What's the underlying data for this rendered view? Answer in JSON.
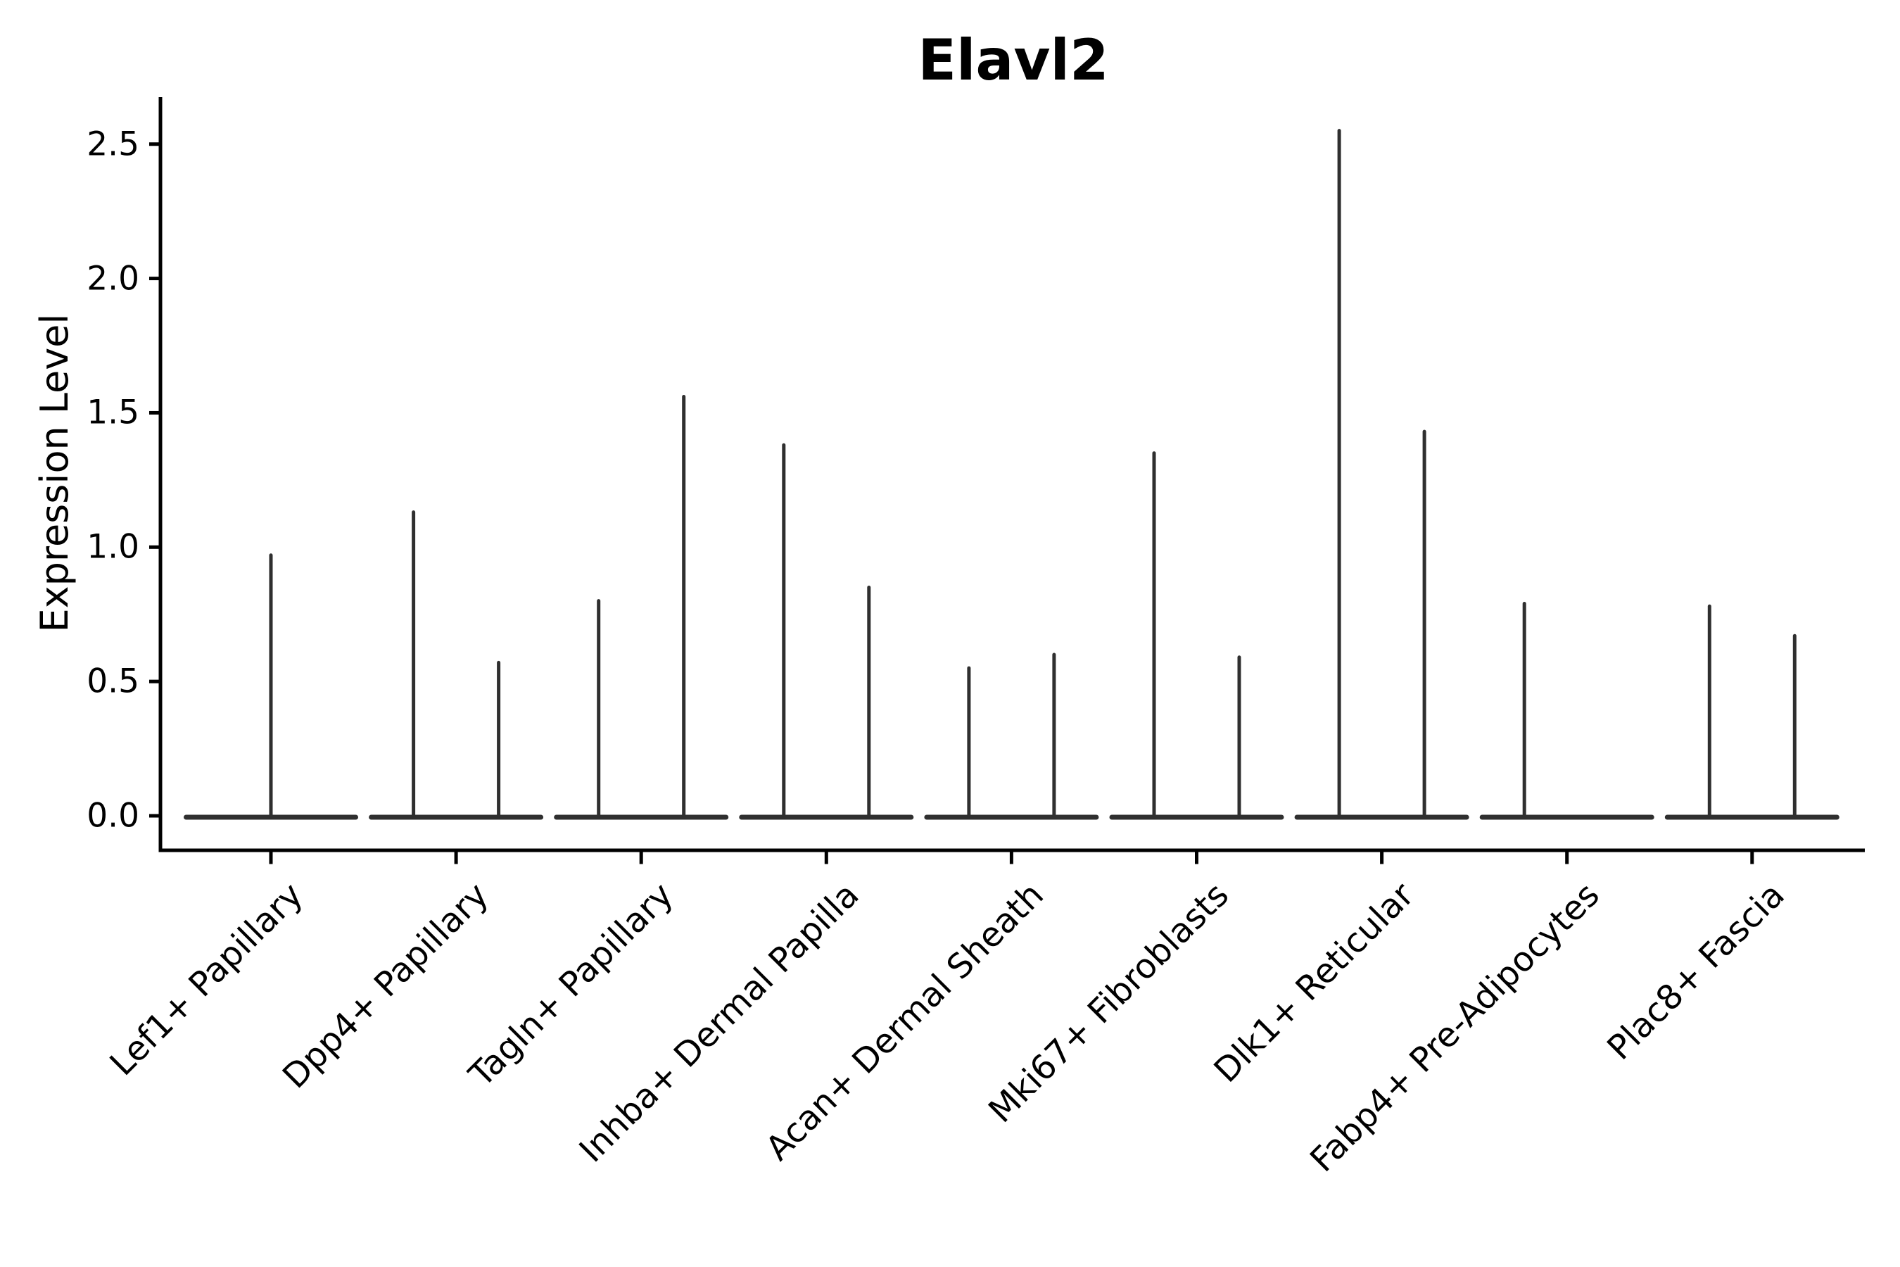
{
  "chart_data": {
    "type": "violin",
    "title": "Elavl2",
    "xlabel": "",
    "ylabel": "Expression Level",
    "ylim": [
      -0.13,
      2.68
    ],
    "yticks": [
      "0.0",
      "0.5",
      "1.0",
      "1.5",
      "2.0",
      "2.5"
    ],
    "ytick_values": [
      0.0,
      0.5,
      1.0,
      1.5,
      2.0,
      2.5
    ],
    "grid": false,
    "legend": "none",
    "categories": [
      "Lef1+ Papillary",
      "Dpp4+ Papillary",
      "Tagln+ Papillary",
      "Inhba+ Dermal Papilla",
      "Acan+ Dermal Sheath",
      "Mki67+ Fibroblasts",
      "Dlk1+ Reticular",
      "Fabp4+ Pre-Adipocytes",
      "Plac8+ Fascia"
    ],
    "description": "Violin plot of Elavl2 expression per fibroblast cluster; each violin is collapsed to a flat baseline at 0 with one thin spike reaching the maximum expression value.",
    "violins": [
      {
        "category": "Lef1+ Papillary",
        "spikes": [
          {
            "position": "center",
            "peak": 0.97
          }
        ]
      },
      {
        "category": "Dpp4+ Papillary",
        "spikes": [
          {
            "position": "left",
            "peak": 1.13
          },
          {
            "position": "right",
            "peak": 0.57
          }
        ]
      },
      {
        "category": "Tagln+ Papillary",
        "spikes": [
          {
            "position": "left",
            "peak": 0.8
          },
          {
            "position": "right",
            "peak": 1.56
          }
        ]
      },
      {
        "category": "Inhba+ Dermal Papilla",
        "spikes": [
          {
            "position": "left",
            "peak": 1.38
          },
          {
            "position": "right",
            "peak": 0.85
          }
        ]
      },
      {
        "category": "Acan+ Dermal Sheath",
        "spikes": [
          {
            "position": "left",
            "peak": 0.55
          },
          {
            "position": "right",
            "peak": 0.6
          }
        ]
      },
      {
        "category": "Mki67+ Fibroblasts",
        "spikes": [
          {
            "position": "left",
            "peak": 1.35
          },
          {
            "position": "right",
            "peak": 0.59
          }
        ]
      },
      {
        "category": "Dlk1+ Reticular",
        "spikes": [
          {
            "position": "left",
            "peak": 2.55
          },
          {
            "position": "right",
            "peak": 1.43
          }
        ]
      },
      {
        "category": "Fabp4+ Pre-Adipocytes",
        "spikes": [
          {
            "position": "left",
            "peak": 0.79
          }
        ]
      },
      {
        "category": "Plac8+ Fascia",
        "spikes": [
          {
            "position": "left",
            "peak": 0.78
          },
          {
            "position": "right",
            "peak": 0.67
          }
        ]
      }
    ],
    "colors": {
      "background": "#ffffff",
      "axis": "#000000",
      "text": "#000000",
      "violin_line": "#2f2f2f"
    }
  }
}
